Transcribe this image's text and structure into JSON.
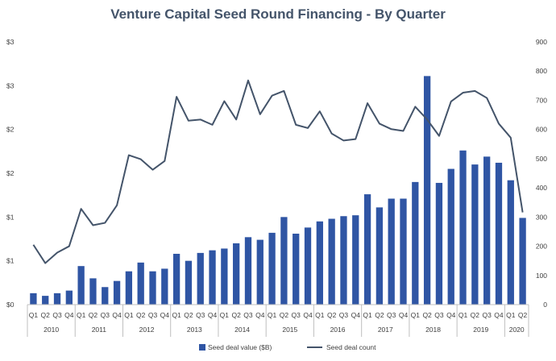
{
  "chart_data": {
    "type": "bar",
    "title": "Venture Capital Seed Round Financing - By Quarter",
    "xlabel": "",
    "ylabel": "",
    "categories": [
      "Q1",
      "Q2",
      "Q3",
      "Q4",
      "Q1",
      "Q2",
      "Q3",
      "Q4",
      "Q1",
      "Q2",
      "Q3",
      "Q4",
      "Q1",
      "Q2",
      "Q3",
      "Q4",
      "Q1",
      "Q2",
      "Q3",
      "Q4",
      "Q1",
      "Q2",
      "Q3",
      "Q4",
      "Q1",
      "Q2",
      "Q3",
      "Q4",
      "Q1",
      "Q2",
      "Q3",
      "Q4",
      "Q1",
      "Q2",
      "Q3",
      "Q4",
      "Q1",
      "Q2",
      "Q3",
      "Q4",
      "Q1",
      "Q2"
    ],
    "year_groups": [
      {
        "label": "2010",
        "count": 4
      },
      {
        "label": "2011",
        "count": 4
      },
      {
        "label": "2012",
        "count": 4
      },
      {
        "label": "2013",
        "count": 4
      },
      {
        "label": "2014",
        "count": 4
      },
      {
        "label": "2015",
        "count": 4
      },
      {
        "label": "2016",
        "count": 4
      },
      {
        "label": "2017",
        "count": 4
      },
      {
        "label": "2018",
        "count": 4
      },
      {
        "label": "2019",
        "count": 4
      },
      {
        "label": "2020",
        "count": 2
      }
    ],
    "series": [
      {
        "name": "Seed deal value ($B)",
        "type": "bar",
        "axis": "left",
        "color": "#2f55a4",
        "values": [
          0.13,
          0.1,
          0.13,
          0.16,
          0.44,
          0.3,
          0.2,
          0.27,
          0.38,
          0.48,
          0.38,
          0.41,
          0.58,
          0.5,
          0.59,
          0.62,
          0.64,
          0.7,
          0.77,
          0.74,
          0.82,
          1.0,
          0.81,
          0.88,
          0.95,
          0.98,
          1.01,
          1.02,
          1.26,
          1.11,
          1.21,
          1.21,
          1.4,
          2.61,
          1.39,
          1.55,
          1.76,
          1.6,
          1.69,
          1.62,
          1.42,
          0.99
        ]
      },
      {
        "name": "Seed deal count",
        "type": "line",
        "axis": "right",
        "color": "#44546a",
        "values": [
          205,
          142,
          178,
          200,
          328,
          272,
          280,
          340,
          512,
          498,
          462,
          492,
          712,
          630,
          634,
          616,
          697,
          634,
          768,
          652,
          716,
          732,
          616,
          605,
          662,
          586,
          562,
          567,
          690,
          620,
          601,
          595,
          678,
          634,
          578,
          696,
          726,
          732,
          708,
          620,
          572,
          316
        ]
      }
    ],
    "left_axis": {
      "ticks": [
        "$0",
        "$1",
        "$1",
        "$2",
        "$2",
        "$3",
        "$3"
      ],
      "ylim": [
        0,
        3
      ]
    },
    "right_axis": {
      "ticks": [
        "0",
        "100",
        "200",
        "300",
        "400",
        "500",
        "600",
        "700",
        "800",
        "900"
      ],
      "ylim": [
        0,
        900
      ]
    },
    "legend_position": "bottom",
    "grid": false
  }
}
